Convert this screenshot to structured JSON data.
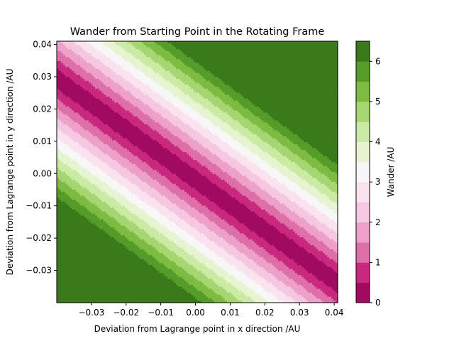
{
  "chart_data": {
    "type": "heatmap",
    "title": "Wander from Starting Point in the Rotating Frame",
    "xlabel": "Deviation from Lagrange point in x direction /AU",
    "ylabel": "Deviation from Lagrange point in y direction /AU",
    "xlim": [
      -0.04,
      0.041
    ],
    "ylim": [
      -0.04,
      0.041
    ],
    "x_ticks": [
      -0.03,
      -0.02,
      -0.01,
      0.0,
      0.01,
      0.02,
      0.03,
      0.04
    ],
    "x_tick_labels": [
      "−0.03",
      "−0.02",
      "−0.01",
      "0.00",
      "0.01",
      "0.02",
      "0.03",
      "0.04"
    ],
    "y_ticks": [
      -0.03,
      -0.02,
      -0.01,
      0.0,
      0.01,
      0.02,
      0.03,
      0.04
    ],
    "y_tick_labels": [
      "−0.03",
      "−0.02",
      "−0.01",
      "0.00",
      "0.01",
      "0.02",
      "0.03",
      "0.04"
    ],
    "contour_levels": [
      0,
      0.5,
      1.0,
      1.5,
      2.0,
      2.5,
      3.0,
      3.5,
      4.0,
      4.5,
      5.0,
      5.5,
      6.0,
      6.5
    ],
    "level_colors": [
      "#a20a62",
      "#c8287e",
      "#df6fa8",
      "#eda1c9",
      "#f6c7e1",
      "#fbe2ef",
      "#f7f7f7",
      "#e7f4d2",
      "#cbeaa3",
      "#a5d672",
      "#7dbb43",
      "#559c28",
      "#3a7a1b"
    ],
    "field": {
      "description_of_shape": "diagonal bands; wander ~ |x + 1.28*y + 0.0025| / 0.0078 AU",
      "min_ridge_offset": 0.0025,
      "slope_coefficient": 1.28,
      "scale": 0.0078
    },
    "colorbar": {
      "label": "Wander /AU",
      "ticks": [
        0,
        1,
        2,
        3,
        4,
        5,
        6
      ],
      "tick_labels": [
        "0",
        "1",
        "2",
        "3",
        "4",
        "5",
        "6"
      ],
      "range": [
        0,
        6.5
      ]
    }
  }
}
